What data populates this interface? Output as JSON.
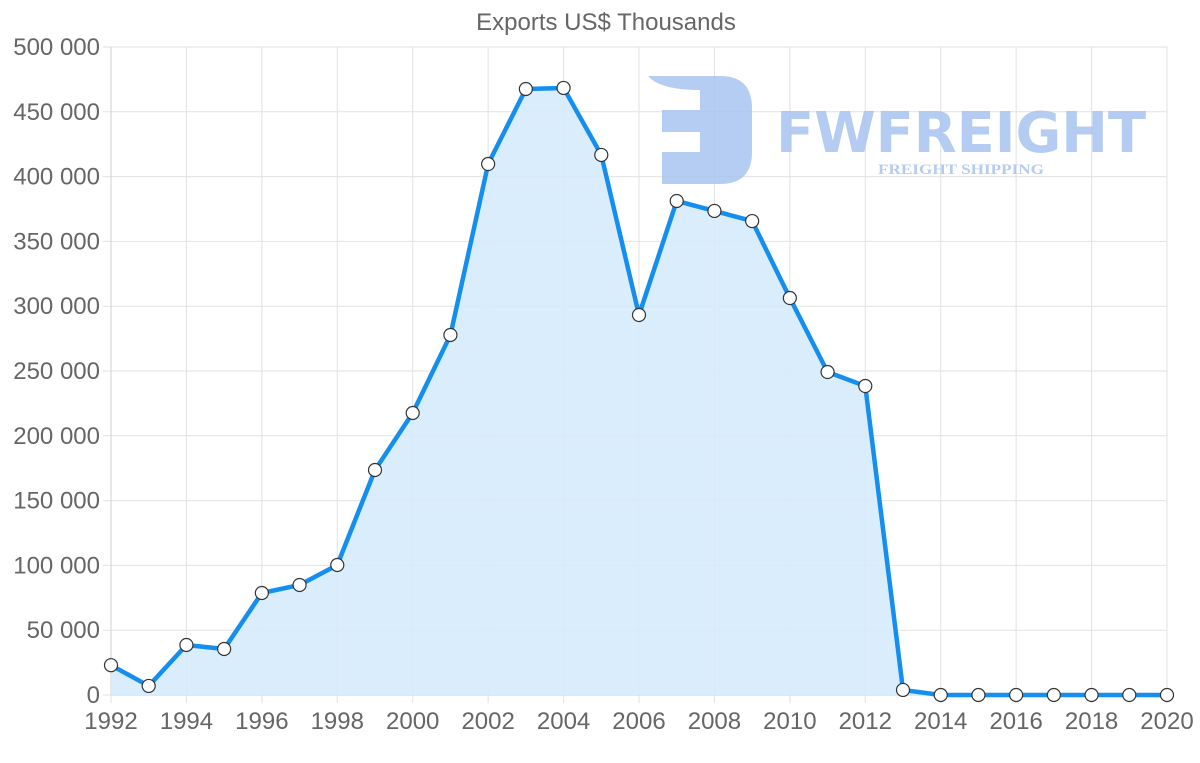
{
  "chart_data": {
    "type": "area",
    "title": "Exports US$ Thousands",
    "xlabel": "",
    "ylabel": "",
    "x": [
      1992,
      1993,
      1994,
      1995,
      1996,
      1997,
      1998,
      1999,
      2000,
      2001,
      2002,
      2003,
      2004,
      2005,
      2006,
      2007,
      2008,
      2009,
      2010,
      2011,
      2012,
      2013,
      2014,
      2015,
      2016,
      2017,
      2018,
      2019,
      2020
    ],
    "series": [
      {
        "name": "Exports US$ Thousands",
        "values": [
          23000,
          7000,
          38600,
          35500,
          78700,
          84900,
          100300,
          173600,
          217600,
          277800,
          409700,
          467600,
          468400,
          416700,
          293200,
          381200,
          373500,
          365700,
          306300,
          249200,
          238400,
          3900,
          0,
          0,
          0,
          0,
          0,
          0,
          0
        ]
      }
    ],
    "ylim": [
      0,
      500000
    ],
    "xlim": [
      1992,
      2020
    ],
    "y_ticks": [
      "0",
      "50 000",
      "100 000",
      "150 000",
      "200 000",
      "250 000",
      "300 000",
      "350 000",
      "400 000",
      "450 000",
      "500 000"
    ],
    "x_ticks": [
      "1992",
      "1994",
      "1996",
      "1998",
      "2000",
      "2002",
      "2004",
      "2006",
      "2008",
      "2010",
      "2012",
      "2014",
      "2016",
      "2018",
      "2020"
    ],
    "grid": true,
    "legend": "none",
    "colors": {
      "line": "#148ff0",
      "fill": "#d6ebfc",
      "point_fill": "#ffffff",
      "point_stroke": "#333333",
      "grid": "#e2e2e2",
      "text": "#666666"
    }
  },
  "watermark": {
    "brand": "FWFREIGHT",
    "tagline": "FREIGHT SHIPPING",
    "color": "#a8c4f0"
  }
}
